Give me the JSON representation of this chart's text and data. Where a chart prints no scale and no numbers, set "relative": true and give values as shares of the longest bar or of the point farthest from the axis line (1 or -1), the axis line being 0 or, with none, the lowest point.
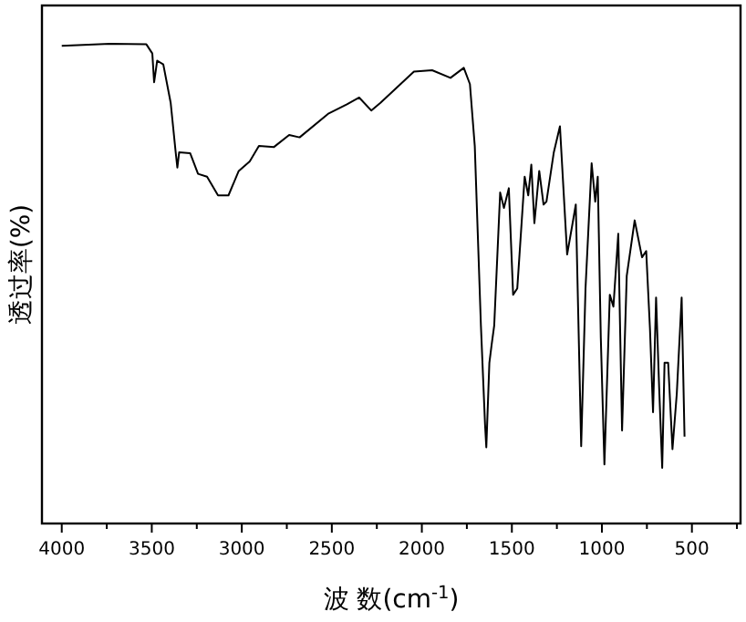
{
  "chart_data": {
    "type": "line",
    "relative": true,
    "xlabel": "波 数(cm$^{-1}$)",
    "ylabel": "透过率(%)",
    "xlim": [
      4110,
      230
    ],
    "xticks": [
      4000,
      {
        "value": 3750,
        "label": null
      },
      3500,
      {
        "value": 3250,
        "label": null
      },
      3000,
      {
        "value": 2750,
        "label": null
      },
      2500,
      {
        "value": 2250,
        "label": null
      },
      2000,
      {
        "value": 1750,
        "label": null
      },
      1500,
      {
        "value": 1250,
        "label": null
      },
      1000,
      {
        "value": 750,
        "label": null
      },
      500,
      {
        "value": 250,
        "label": null
      }
    ],
    "x": [
      4000,
      3733,
      3530,
      3497,
      3487,
      3470,
      3436,
      3395,
      3368,
      3358,
      3348,
      3287,
      3243,
      3193,
      3132,
      3074,
      3017,
      2956,
      2905,
      2821,
      2737,
      2679,
      2517,
      2416,
      2348,
      2281,
      2230,
      2044,
      1943,
      1841,
      1767,
      1733,
      1706,
      1672,
      1649,
      1642,
      1625,
      1612,
      1598,
      1565,
      1544,
      1517,
      1493,
      1470,
      1429,
      1409,
      1392,
      1375,
      1348,
      1324,
      1308,
      1267,
      1233,
      1193,
      1166,
      1145,
      1115,
      1091,
      1057,
      1037,
      1023,
      1006,
      986,
      956,
      936,
      909,
      888,
      862,
      818,
      777,
      754,
      733,
      716,
      699,
      682,
      665,
      652,
      632,
      608,
      584,
      557,
      541
    ],
    "series": [
      {
        "color": "#000000",
        "values": [
          0.996,
          1.0,
          0.999,
          0.98,
          0.92,
          0.965,
          0.957,
          0.877,
          0.777,
          0.742,
          0.774,
          0.772,
          0.729,
          0.723,
          0.684,
          0.684,
          0.735,
          0.755,
          0.787,
          0.785,
          0.81,
          0.805,
          0.855,
          0.874,
          0.888,
          0.861,
          0.877,
          0.942,
          0.945,
          0.929,
          0.95,
          0.916,
          0.787,
          0.413,
          0.206,
          0.159,
          0.335,
          0.374,
          0.413,
          0.69,
          0.658,
          0.699,
          0.477,
          0.49,
          0.723,
          0.684,
          0.748,
          0.626,
          0.735,
          0.665,
          0.671,
          0.774,
          0.828,
          0.561,
          0.619,
          0.665,
          0.161,
          0.49,
          0.751,
          0.671,
          0.723,
          0.387,
          0.123,
          0.477,
          0.452,
          0.604,
          0.194,
          0.516,
          0.632,
          0.555,
          0.568,
          0.406,
          0.232,
          0.471,
          0.284,
          0.116,
          0.335,
          0.335,
          0.155,
          0.271,
          0.471,
          0.181
        ]
      }
    ]
  }
}
